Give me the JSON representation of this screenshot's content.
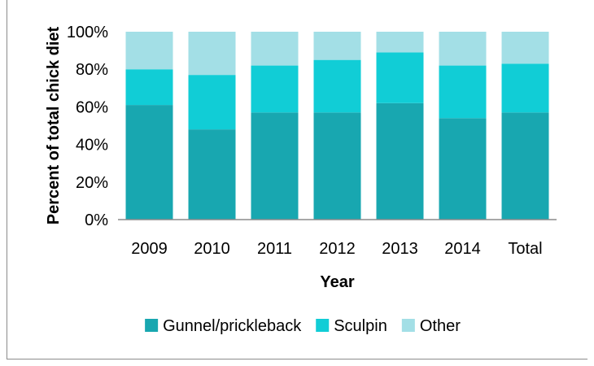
{
  "chart_data": {
    "type": "bar",
    "stacked": true,
    "categories": [
      "2009",
      "2010",
      "2011",
      "2012",
      "2013",
      "2014",
      "Total"
    ],
    "series": [
      {
        "name": "Gunnel/prickleback",
        "color": "#18a7b0",
        "values": [
          61,
          48,
          57,
          57,
          62,
          54,
          57
        ]
      },
      {
        "name": "Sculpin",
        "color": "#11cdd6",
        "values": [
          19,
          29,
          25,
          28,
          27,
          28,
          26
        ]
      },
      {
        "name": "Other",
        "color": "#a3dfe6",
        "values": [
          20,
          23,
          18,
          15,
          11,
          18,
          17
        ]
      }
    ],
    "xlabel": "Year",
    "ylabel": "Percent of total chick diet",
    "ylim": [
      0,
      100
    ],
    "yticks": [
      "0%",
      "20%",
      "40%",
      "60%",
      "80%",
      "100%"
    ],
    "grid": false,
    "legend_position": "bottom"
  }
}
